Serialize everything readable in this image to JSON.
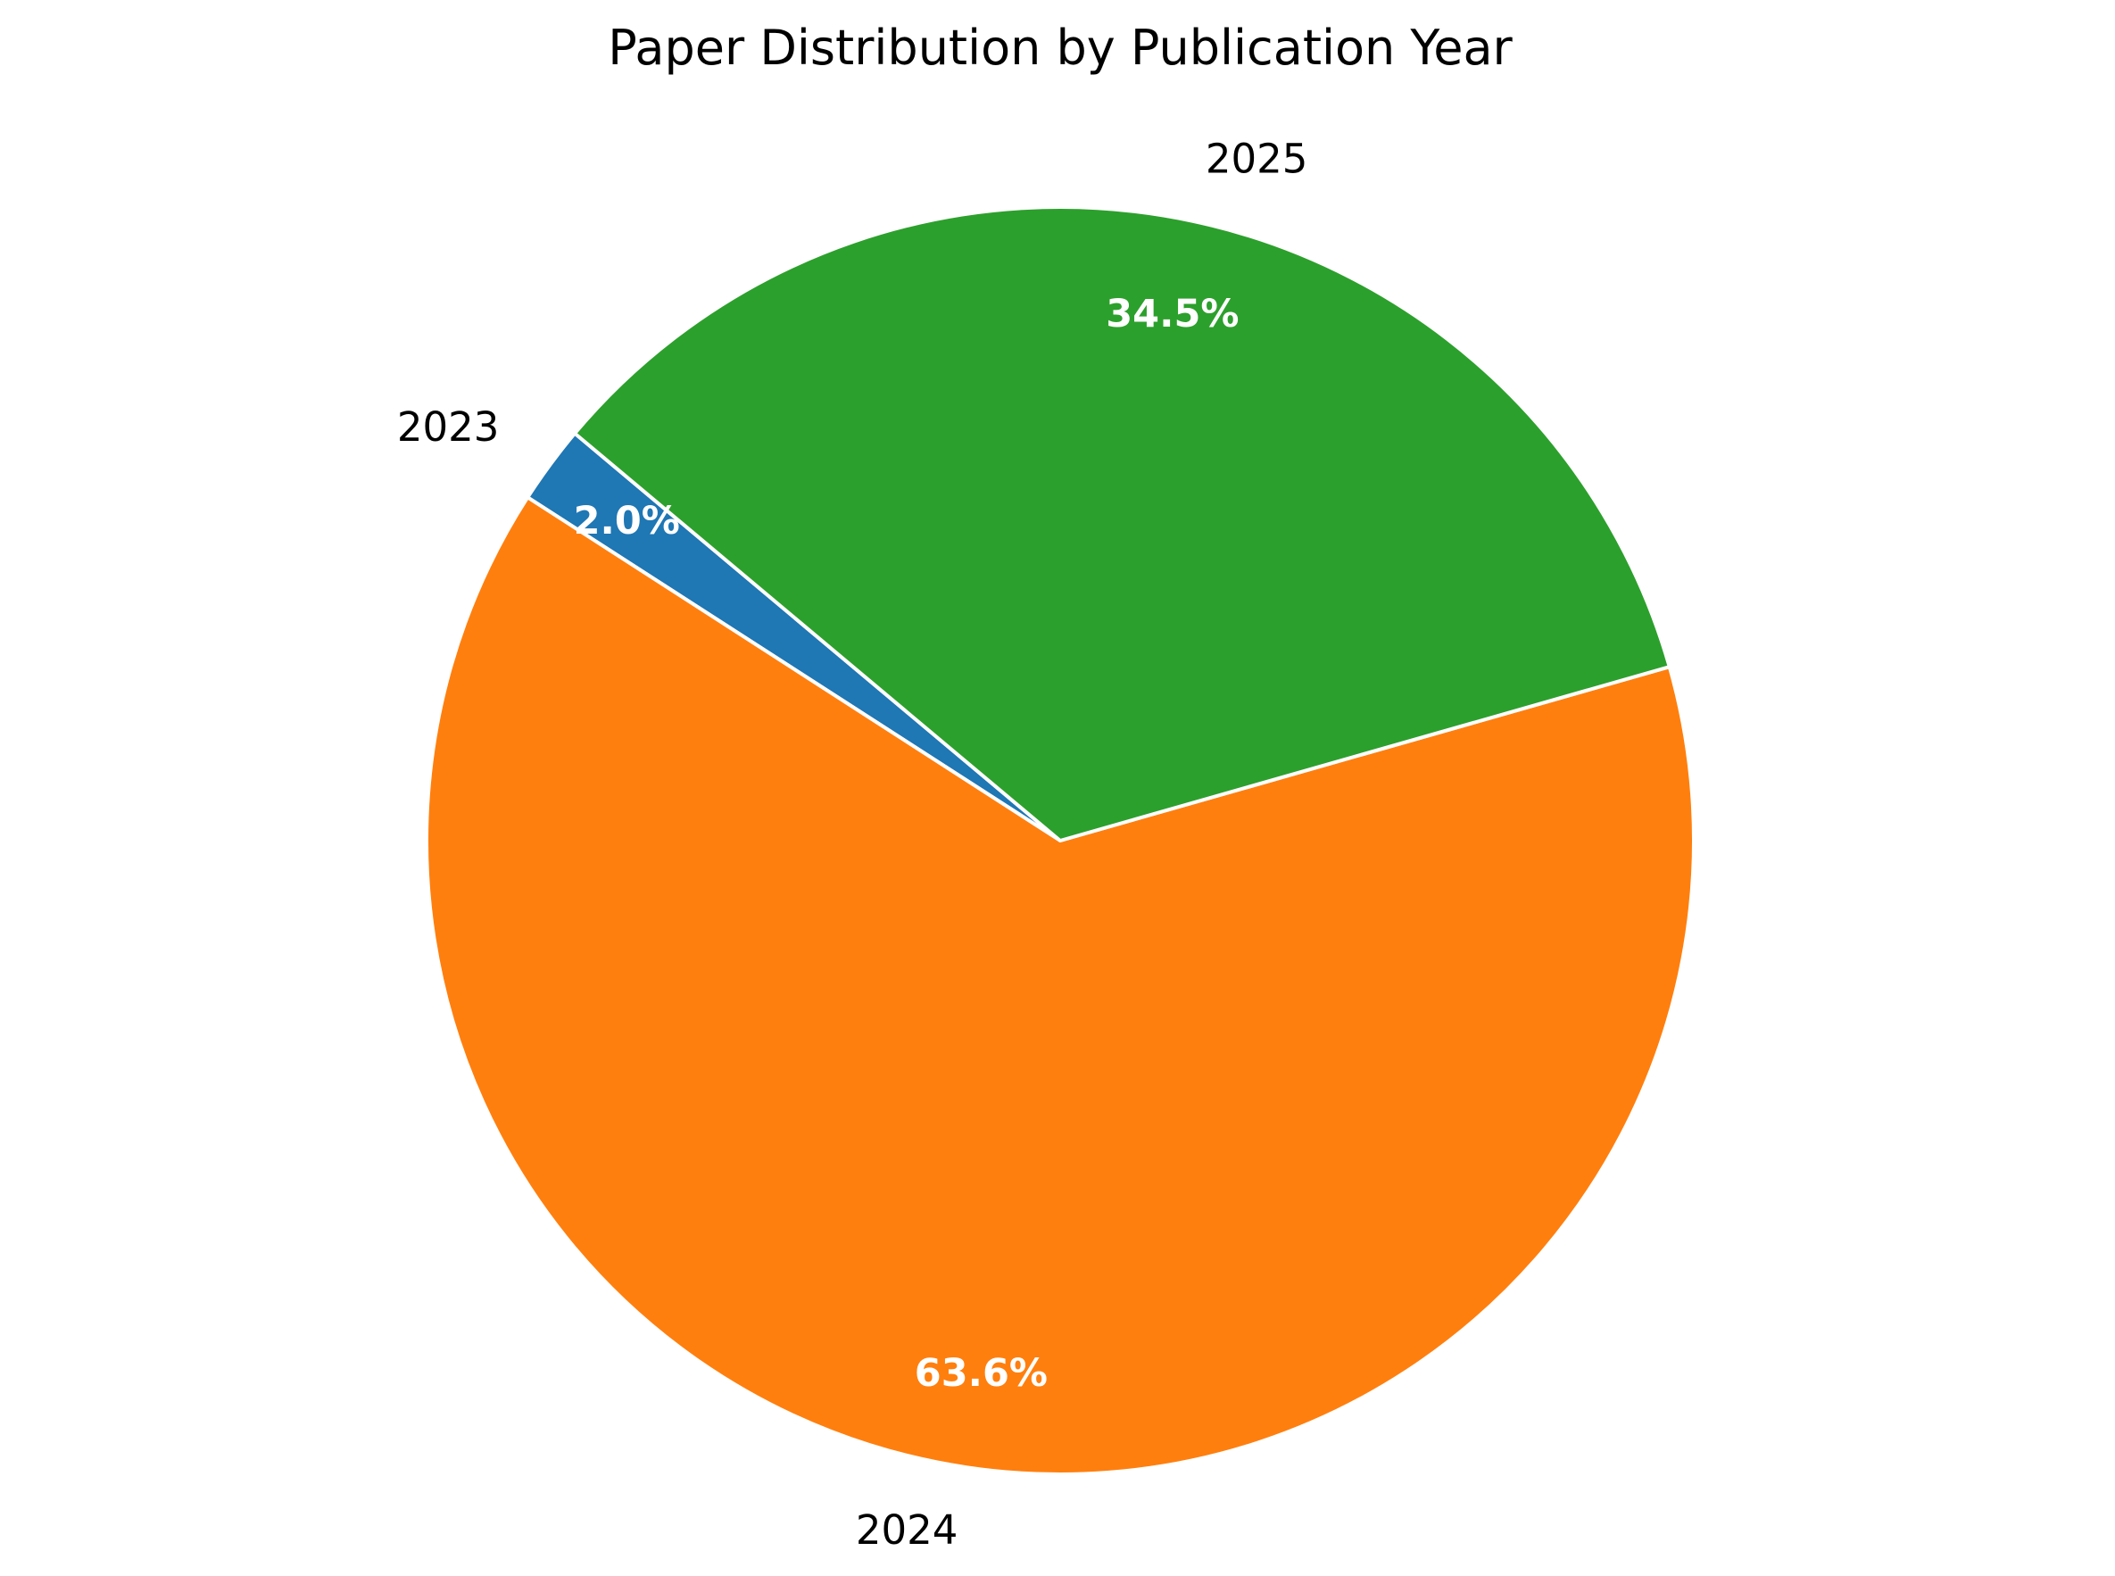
{
  "chart_data": {
    "type": "pie",
    "title": "Paper Distribution by Publication Year",
    "categories": [
      "2023",
      "2024",
      "2025"
    ],
    "values": [
      2.0,
      63.6,
      34.5
    ],
    "value_labels": [
      "2.0%",
      "63.6%",
      "34.5%"
    ],
    "colors": [
      "#1f77b4",
      "#ff7f0e",
      "#2ca02c"
    ],
    "start_angle_deg": 140,
    "direction": "counterclockwise",
    "legend": "none"
  }
}
